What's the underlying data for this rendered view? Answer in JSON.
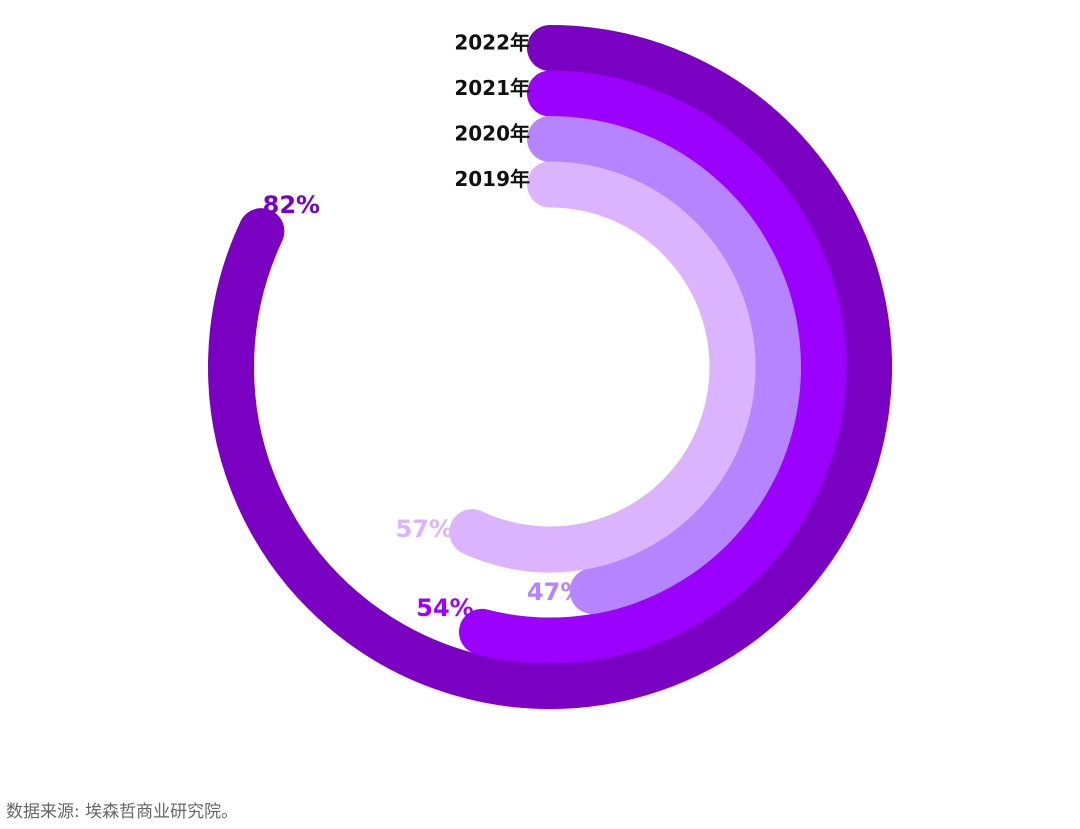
{
  "chart_data": {
    "type": "radialBar",
    "categories": [
      "2022年",
      "2021年",
      "2020年",
      "2019年"
    ],
    "values": [
      82,
      54,
      47,
      57
    ],
    "value_labels": [
      "82%",
      "54%",
      "47%",
      "57%"
    ],
    "colors": [
      "#7a00c2",
      "#9b00ff",
      "#b784ff",
      "#dcb3ff"
    ],
    "max": 100,
    "source": "数据来源: 埃森哲商业研究院。"
  }
}
